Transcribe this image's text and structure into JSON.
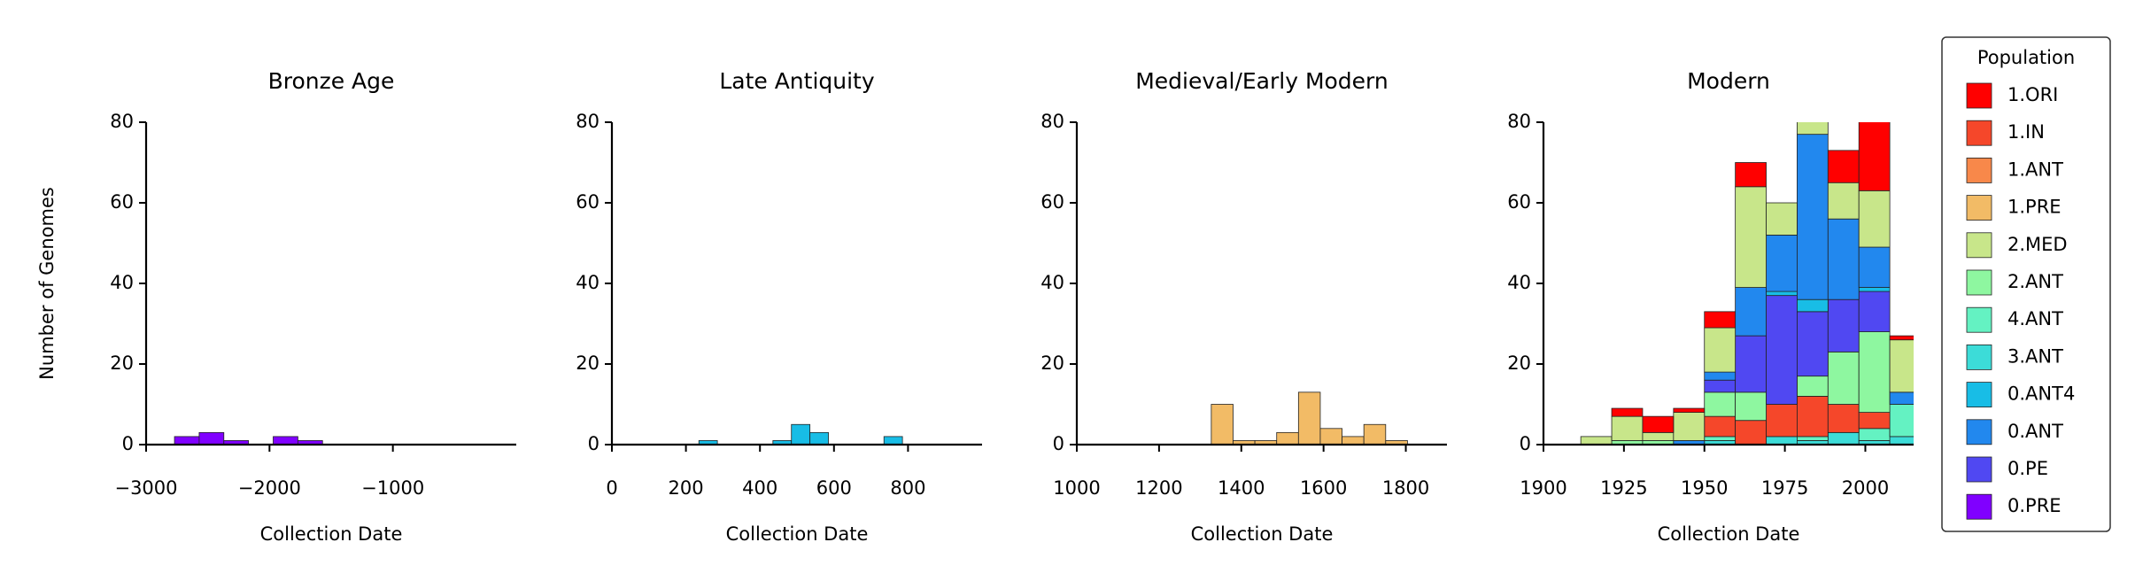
{
  "chart_data": [
    {
      "type": "histogram",
      "title": "Bronze Age",
      "xlabel": "Collection Date",
      "ylabel": "Number of Genomes",
      "bins": [
        -2770,
        -2570,
        -2370,
        -2170,
        -1970,
        -1770,
        -1570
      ],
      "series": [
        {
          "name": "0.PRE",
          "color": "#8000ff",
          "values": [
            2,
            3,
            1,
            0,
            2,
            1
          ]
        }
      ],
      "xlim": [
        -3000,
        0
      ],
      "ylim": [
        0,
        80
      ],
      "xticks": [
        {
          "value": -3000,
          "label": "−3000"
        },
        {
          "value": -2000,
          "label": "−2000"
        },
        {
          "value": -1000,
          "label": "−1000"
        }
      ],
      "yticks": [
        0,
        20,
        40,
        60,
        80
      ]
    },
    {
      "type": "histogram",
      "title": "Late Antiquity",
      "xlabel": "Collection Date",
      "bins": [
        235,
        285,
        335,
        385,
        435,
        485,
        535,
        585,
        635,
        685,
        735,
        785
      ],
      "series": [
        {
          "name": "0.ANT4",
          "color": "#18bde6",
          "values": [
            1,
            0,
            0,
            0,
            1,
            5,
            3,
            0,
            0,
            0,
            2
          ]
        }
      ],
      "xlim": [
        0,
        1000
      ],
      "ylim": [
        0,
        80
      ],
      "xticks": [
        0,
        200,
        400,
        600,
        800
      ],
      "yticks": [
        0,
        20,
        40,
        60,
        80
      ]
    },
    {
      "type": "histogram",
      "title": "Medieval/Early Modern",
      "xlabel": "Collection Date",
      "bins": [
        1327,
        1380,
        1433,
        1486,
        1539,
        1592,
        1645,
        1698,
        1751,
        1804
      ],
      "series": [
        {
          "name": "1.PRE",
          "color": "#f2bb66",
          "values": [
            10,
            1,
            1,
            3,
            13,
            4,
            2,
            5,
            1
          ]
        }
      ],
      "xlim": [
        1000,
        1900
      ],
      "ylim": [
        0,
        80
      ],
      "xticks": [
        1000,
        1200,
        1400,
        1600,
        1800
      ],
      "yticks": [
        0,
        20,
        40,
        60,
        80
      ]
    },
    {
      "type": "histogram",
      "title": "Modern",
      "xlabel": "Collection Date",
      "bins": [
        1911.6,
        1921.2,
        1930.8,
        1940.4,
        1950,
        1959.6,
        1969.2,
        1978.8,
        1988.4,
        1998,
        2007.6,
        2017.2
      ],
      "series": [
        {
          "name": "3.ANT",
          "color": "#3cdcd8",
          "values": [
            0,
            0,
            0,
            0,
            1,
            0,
            2,
            1,
            3,
            1,
            2
          ]
        },
        {
          "name": "4.ANT",
          "color": "#64f2c2",
          "values": [
            0,
            0,
            0,
            0,
            1,
            0,
            0,
            1,
            0,
            3,
            8
          ]
        },
        {
          "name": "1.IN",
          "color": "#f5472a",
          "values": [
            0,
            0,
            0,
            0,
            5,
            6,
            8,
            10,
            7,
            4,
            0
          ]
        },
        {
          "name": "2.ANT",
          "color": "#8ef7a0",
          "values": [
            0,
            1,
            1,
            0,
            6,
            7,
            0,
            5,
            13,
            20,
            0
          ]
        },
        {
          "name": "0.PE",
          "color": "#5048f2",
          "values": [
            0,
            0,
            0,
            0,
            3,
            14,
            27,
            16,
            13,
            10,
            0
          ]
        },
        {
          "name": "0.ANT4",
          "color": "#18bde6",
          "values": [
            0,
            0,
            0,
            0,
            0,
            0,
            1,
            3,
            0,
            1,
            0
          ]
        },
        {
          "name": "0.ANT",
          "color": "#2288ee",
          "values": [
            0,
            0,
            0,
            1,
            2,
            12,
            14,
            41,
            20,
            10,
            3
          ]
        },
        {
          "name": "2.MED",
          "color": "#c8e68a",
          "values": [
            2,
            6,
            2,
            7,
            11,
            25,
            8,
            5,
            9,
            14,
            13
          ]
        },
        {
          "name": "1.ORI",
          "color": "#ff0000",
          "values": [
            0,
            2,
            4,
            1,
            4,
            6,
            0,
            0,
            8,
            20,
            1
          ]
        }
      ],
      "xlim": [
        1900,
        2015
      ],
      "ylim": [
        0,
        80
      ],
      "xticks": [
        1900,
        1925,
        1950,
        1975,
        2000
      ],
      "yticks": [
        0,
        20,
        40,
        60,
        80
      ]
    }
  ],
  "legend": {
    "title": "Population",
    "entries": [
      {
        "name": "1.ORI",
        "color": "#ff0000"
      },
      {
        "name": "1.IN",
        "color": "#f5472a"
      },
      {
        "name": "1.ANT",
        "color": "#f8884a"
      },
      {
        "name": "1.PRE",
        "color": "#f2bb66"
      },
      {
        "name": "2.MED",
        "color": "#c8e68a"
      },
      {
        "name": "2.ANT",
        "color": "#8ef7a0"
      },
      {
        "name": "4.ANT",
        "color": "#64f2c2"
      },
      {
        "name": "3.ANT",
        "color": "#3cdcd8"
      },
      {
        "name": "0.ANT4",
        "color": "#18bde6"
      },
      {
        "name": "0.ANT",
        "color": "#2288ee"
      },
      {
        "name": "0.PE",
        "color": "#5048f2"
      },
      {
        "name": "0.PRE",
        "color": "#8000ff"
      }
    ]
  }
}
